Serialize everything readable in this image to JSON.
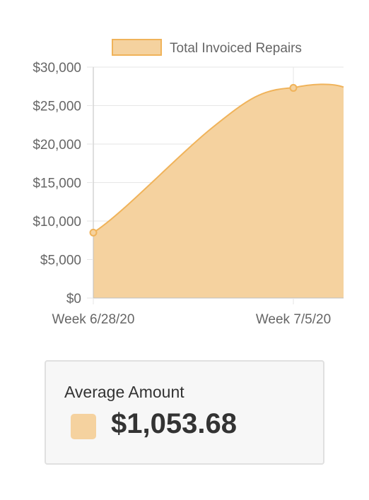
{
  "chart_data": {
    "type": "area",
    "categories": [
      "Week 6/28/20",
      "Week 7/5/20"
    ],
    "series": [
      {
        "name": "Total Invoiced Repairs",
        "values": [
          8500,
          27300
        ]
      }
    ],
    "ylim": [
      0,
      30000
    ],
    "yticks": [
      "$0",
      "$5,000",
      "$10,000",
      "$15,000",
      "$20,000",
      "$25,000",
      "$30,000"
    ],
    "legend": "top",
    "grid": true,
    "colors": {
      "fill": "#f5d29f",
      "line": "#f0b35a",
      "grid": "#e6e6e6",
      "axis": "#bfbfbf"
    }
  },
  "summary": {
    "title": "Average Amount",
    "value": "$1,053.68",
    "swatch_color": "#f5d29f"
  }
}
